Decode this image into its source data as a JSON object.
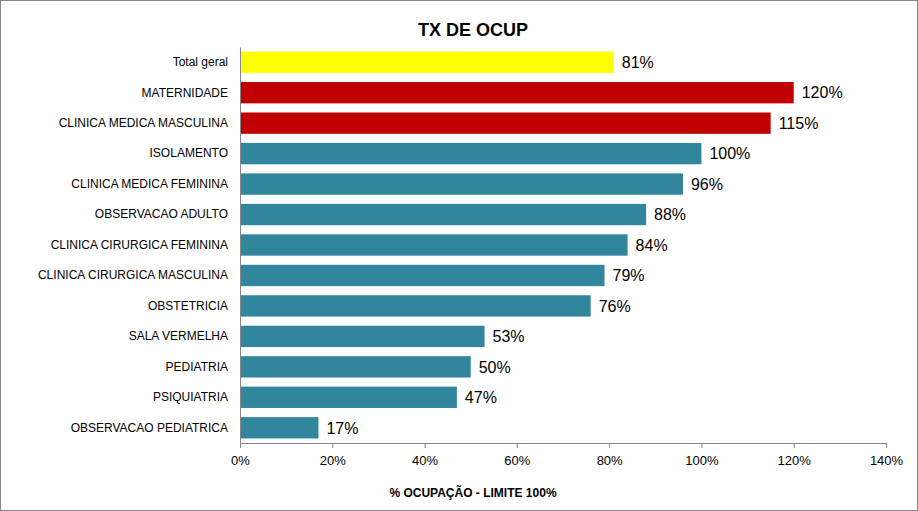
{
  "chart_data": {
    "type": "bar",
    "orientation": "horizontal",
    "title": "TX DE OCUP",
    "x_label": "% OCUPAÇÃO - LIMITE 100%",
    "categories": [
      "Total geral",
      "MATERNIDADE",
      "CLINICA MEDICA MASCULINA",
      "ISOLAMENTO",
      "CLINICA MEDICA FEMININA",
      "OBSERVACAO ADULTO",
      "CLINICA CIRURGICA FEMININA",
      "CLINICA CIRURGICA MASCULINA",
      "OBSTETRICIA",
      "SALA VERMELHA",
      "PEDIATRIA",
      "PSIQUIATRIA",
      "OBSERVACAO PEDIATRICA"
    ],
    "values": [
      81,
      120,
      115,
      100,
      96,
      88,
      84,
      79,
      76,
      53,
      50,
      47,
      17
    ],
    "value_labels": [
      "81%",
      "120%",
      "115%",
      "100%",
      "96%",
      "88%",
      "84%",
      "79%",
      "76%",
      "53%",
      "50%",
      "47%",
      "17%"
    ],
    "colors": [
      "#ffff00",
      "#c00000",
      "#c00000",
      "#31859c",
      "#31859c",
      "#31859c",
      "#31859c",
      "#31859c",
      "#31859c",
      "#31859c",
      "#31859c",
      "#31859c",
      "#31859c"
    ],
    "xlim": [
      0,
      140
    ],
    "xticks": [
      {
        "value": 0,
        "label": "0%"
      },
      {
        "value": 20,
        "label": "20%"
      },
      {
        "value": 40,
        "label": "40%"
      },
      {
        "value": 60,
        "label": "60%"
      },
      {
        "value": 80,
        "label": "80%"
      },
      {
        "value": 100,
        "label": "100%"
      },
      {
        "value": 120,
        "label": "120%"
      },
      {
        "value": 140,
        "label": "140%"
      }
    ],
    "grid": false,
    "data_labels": true
  }
}
